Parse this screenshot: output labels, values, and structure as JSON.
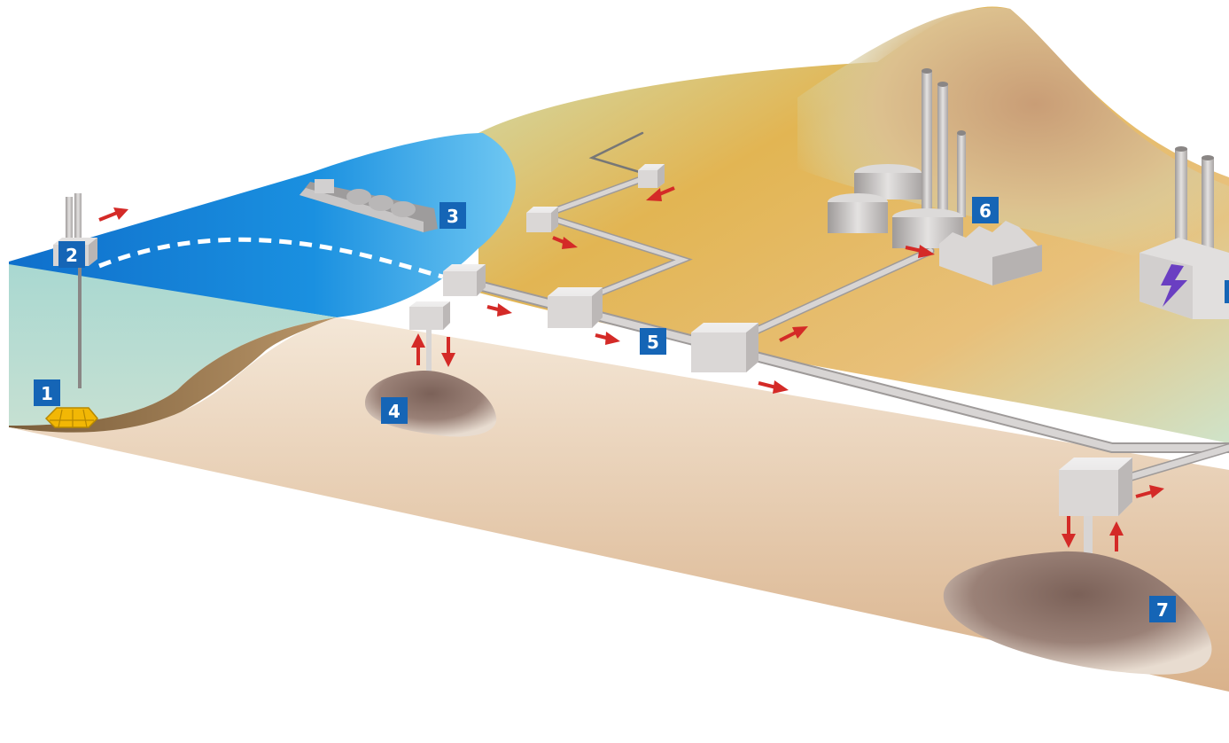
{
  "diagram": {
    "colors": {
      "sea": "#1a7fd0",
      "badge": "#1565b6",
      "arrow": "#d42a27",
      "pipe": "#c9c5c3",
      "reservoir": "#8b7066",
      "soil": "#e5cbac",
      "platform": "#f2b705"
    },
    "labels": [
      {
        "id": "1",
        "number": "1"
      },
      {
        "id": "2",
        "number": "2"
      },
      {
        "id": "3",
        "number": "3"
      },
      {
        "id": "4",
        "number": "4"
      },
      {
        "id": "5",
        "number": "5"
      },
      {
        "id": "6",
        "number": "6"
      },
      {
        "id": "7",
        "number": "7"
      }
    ],
    "icons": {
      "power_plant": "lightning-bolt-icon",
      "flow": "red-arrow-icon"
    }
  }
}
